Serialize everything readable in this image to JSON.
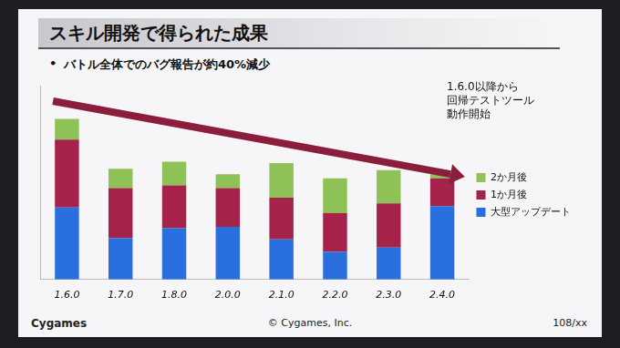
{
  "chart_data": {
    "type": "bar",
    "title": "スキル開発で得られた成果",
    "subtitle": "バトル全体でのバグ報告が約40%減少",
    "annotation": [
      "1.6.0以降から",
      "回帰テストツール",
      "動作開始"
    ],
    "categories": [
      "1.6.0",
      "1.7.0",
      "1.8.0",
      "2.0.0",
      "2.1.0",
      "2.2.0",
      "2.3.0",
      "2.4.0"
    ],
    "series": [
      {
        "name": "大型アップデート",
        "color": "#2a6fe0",
        "values": [
          52,
          30,
          37,
          38,
          29,
          20,
          23,
          53
        ]
      },
      {
        "name": "1か月後",
        "color": "#a5234a",
        "values": [
          49,
          36,
          31,
          28,
          30,
          28,
          32,
          20
        ]
      },
      {
        "name": "2か月後",
        "color": "#8fc256",
        "values": [
          15,
          14,
          17,
          10,
          25,
          25,
          24,
          3
        ]
      }
    ],
    "ylim": [
      0,
      140
    ],
    "stacked": true,
    "grid": false,
    "legend": "right",
    "tick_labels": "x"
  },
  "footer": {
    "logo": "Cygames",
    "copyright": "© Cygames, Inc.",
    "page": "108/xx"
  }
}
